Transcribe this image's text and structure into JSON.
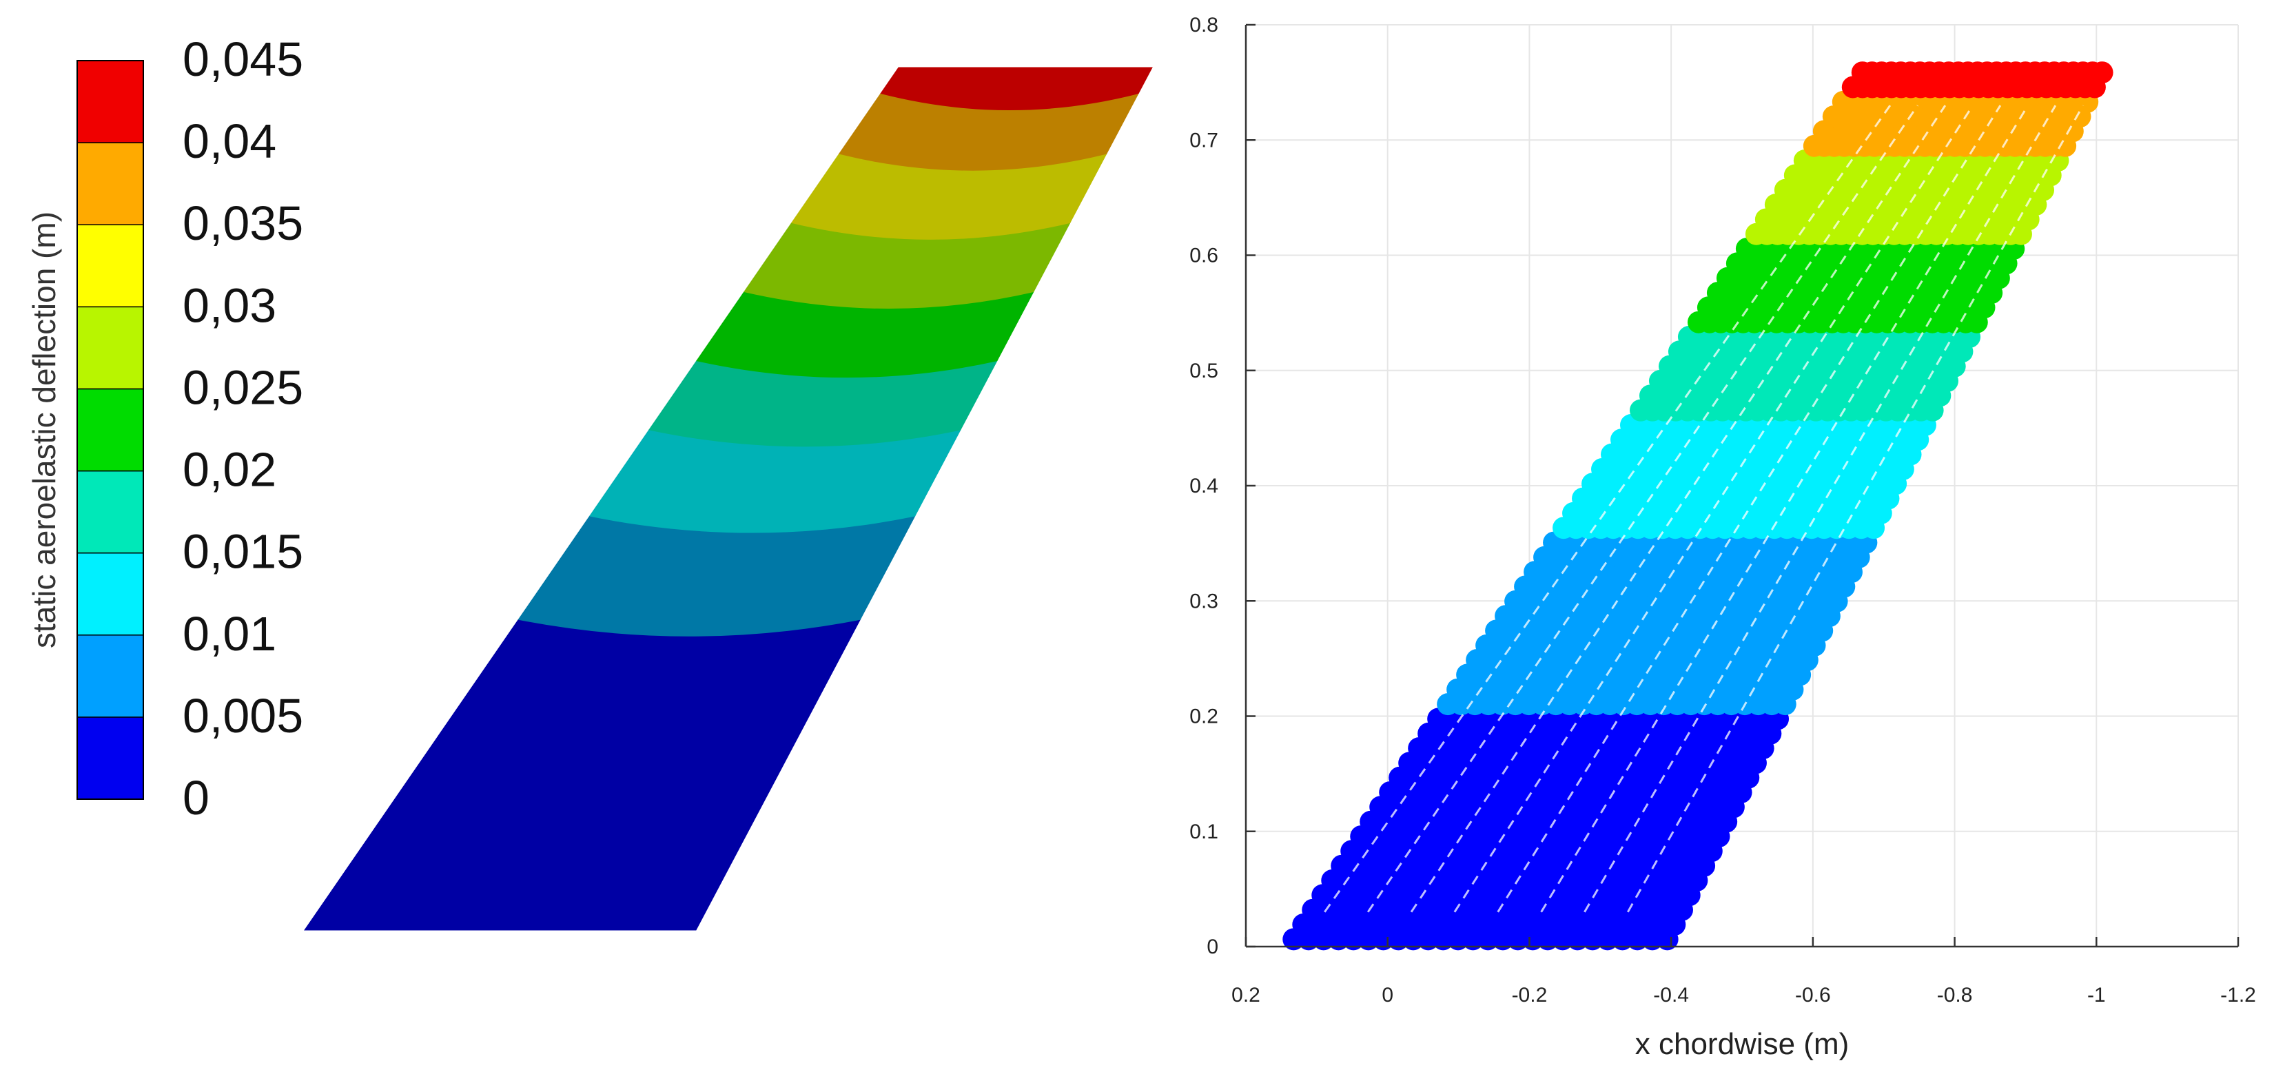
{
  "chart_data": [
    {
      "type": "heatmap",
      "colorbar": {
        "label": "static aeroelastic deflection (m)",
        "ticks": [
          "0,045",
          "0,04",
          "0,035",
          "0,03",
          "0,025",
          "0,02",
          "0,015",
          "0,01",
          "0,005",
          "0"
        ],
        "tick_values": [
          0.045,
          0.04,
          0.035,
          0.03,
          0.025,
          0.02,
          0.015,
          0.01,
          0.005,
          0
        ],
        "colors": [
          "#0000f0",
          "#00a0ff",
          "#00f0ff",
          "#00e8b8",
          "#00dc00",
          "#b8f500",
          "#ffff00",
          "#ffaa00",
          "#f00000"
        ],
        "shaded_colors": [
          "#0000a4",
          "#0078a6",
          "#00b2b6",
          "#00b488",
          "#00b400",
          "#7cb800",
          "#bcbc00",
          "#bc8000",
          "#bc0000"
        ]
      },
      "band_edges_span_fraction": [
        0,
        0.36,
        0.48,
        0.58,
        0.66,
        0.74,
        0.82,
        0.9,
        0.97,
        1.0
      ]
    },
    {
      "type": "scatter",
      "xlabel": "x chordwise (m)",
      "ylabel": "",
      "xlim": [
        0.2,
        -1.2
      ],
      "ylim": [
        0,
        0.8
      ],
      "x_reversed": true,
      "xticks": [
        "0.2",
        "0",
        "-0.2",
        "-0.4",
        "-0.6",
        "-0.8",
        "-1",
        "-1.2"
      ],
      "xtick_values": [
        0.2,
        0,
        -0.2,
        -0.4,
        -0.6,
        -0.8,
        -1,
        -1.2
      ],
      "yticks": [
        "0",
        "0.1",
        "0.2",
        "0.3",
        "0.4",
        "0.5",
        "0.6",
        "0.7",
        "0.8"
      ],
      "ytick_values": [
        0,
        0.1,
        0.2,
        0.3,
        0.4,
        0.5,
        0.6,
        0.7,
        0.8
      ],
      "grid": true,
      "wing": {
        "root_le_x": 0.15,
        "root_te_x": -0.4,
        "tip_le_x": -0.67,
        "tip_te_x": -1.02,
        "root_y": 0,
        "tip_y": 0.765
      },
      "bands": [
        {
          "y0": 0.0,
          "y1": 0.2,
          "color": "#0000ff"
        },
        {
          "y0": 0.2,
          "y1": 0.36,
          "color": "#00a0ff"
        },
        {
          "y0": 0.36,
          "y1": 0.46,
          "color": "#00f0ff"
        },
        {
          "y0": 0.46,
          "y1": 0.53,
          "color": "#00e8b8"
        },
        {
          "y0": 0.53,
          "y1": 0.61,
          "color": "#00dc00"
        },
        {
          "y0": 0.61,
          "y1": 0.69,
          "color": "#b8f500"
        },
        {
          "y0": 0.69,
          "y1": 0.74,
          "color": "#ffaa00"
        },
        {
          "y0": 0.74,
          "y1": 0.765,
          "color": "#ff0000"
        }
      ]
    }
  ]
}
